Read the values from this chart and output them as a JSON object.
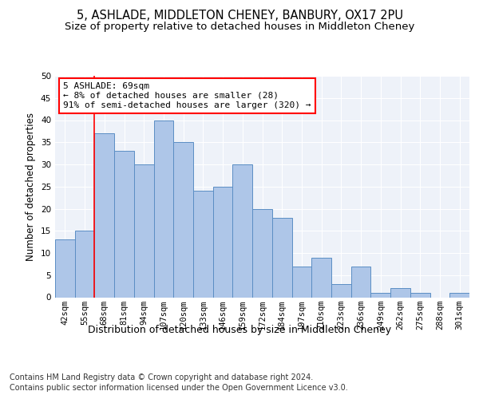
{
  "title_line1": "5, ASHLADE, MIDDLETON CHENEY, BANBURY, OX17 2PU",
  "title_line2": "Size of property relative to detached houses in Middleton Cheney",
  "xlabel": "Distribution of detached houses by size in Middleton Cheney",
  "ylabel": "Number of detached properties",
  "footer_line1": "Contains HM Land Registry data © Crown copyright and database right 2024.",
  "footer_line2": "Contains public sector information licensed under the Open Government Licence v3.0.",
  "annotation_title": "5 ASHLADE: 69sqm",
  "annotation_line1": "← 8% of detached houses are smaller (28)",
  "annotation_line2": "91% of semi-detached houses are larger (320) →",
  "bar_labels": [
    "42sqm",
    "55sqm",
    "68sqm",
    "81sqm",
    "94sqm",
    "107sqm",
    "120sqm",
    "133sqm",
    "146sqm",
    "159sqm",
    "172sqm",
    "184sqm",
    "197sqm",
    "210sqm",
    "223sqm",
    "236sqm",
    "249sqm",
    "262sqm",
    "275sqm",
    "288sqm",
    "301sqm"
  ],
  "bar_values": [
    13,
    15,
    37,
    33,
    30,
    40,
    35,
    24,
    25,
    30,
    20,
    18,
    7,
    9,
    3,
    7,
    1,
    2,
    1,
    0,
    1
  ],
  "bar_color": "#aec6e8",
  "bar_edge_color": "#5b8ec4",
  "red_line_index": 2,
  "ylim": [
    0,
    50
  ],
  "yticks": [
    0,
    5,
    10,
    15,
    20,
    25,
    30,
    35,
    40,
    45,
    50
  ],
  "bg_color": "#eef2f9",
  "grid_color": "#ffffff",
  "title_fontsize": 10.5,
  "subtitle_fontsize": 9.5,
  "ylabel_fontsize": 8.5,
  "xlabel_fontsize": 9,
  "tick_fontsize": 7.5,
  "footer_fontsize": 7,
  "ann_fontsize": 8
}
